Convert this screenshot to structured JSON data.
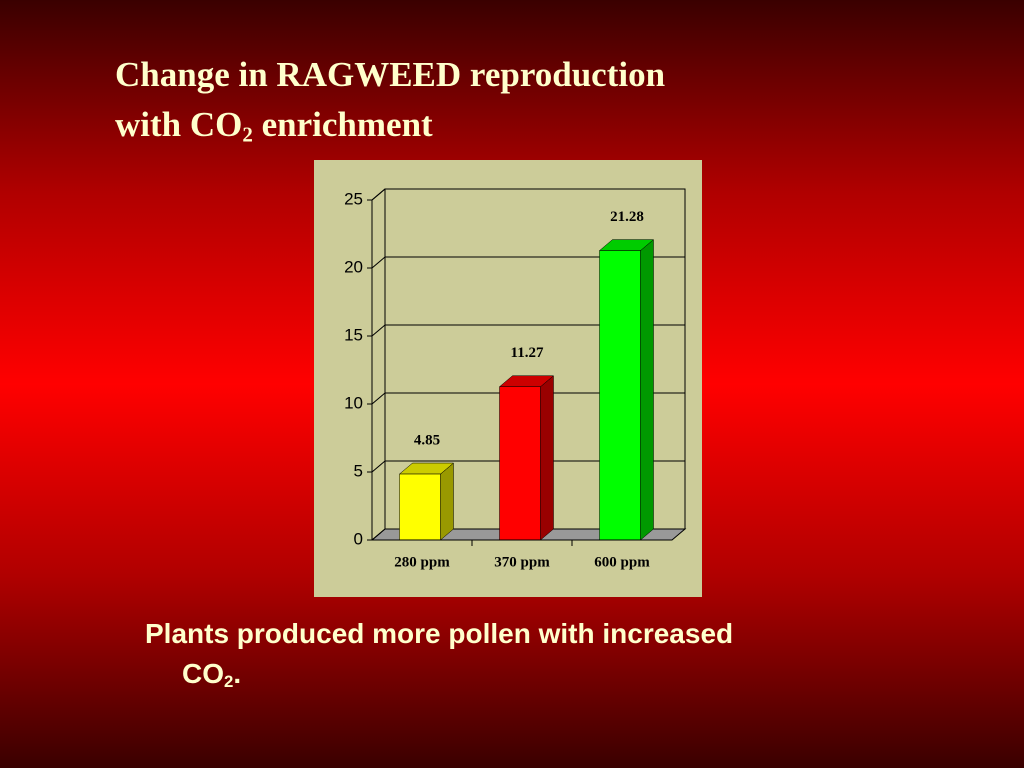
{
  "slide": {
    "title": {
      "line1": "Change in RAGWEED reproduction",
      "line2_start": "with CO",
      "line2_sub": "2",
      "line2_end": "enrichment"
    },
    "caption": {
      "main": "Plants produced more pollen with increased",
      "chem": "CO",
      "sub": "2",
      "end": "."
    }
  },
  "chart_data": {
    "type": "bar3d",
    "categories": [
      "280 ppm",
      "370 ppm",
      "600 ppm"
    ],
    "values": [
      4.85,
      11.27,
      21.28
    ],
    "colors": [
      "#ffff00",
      "#ff0000",
      "#00ff00"
    ],
    "ylim": [
      0,
      25
    ],
    "yticks": [
      0,
      5,
      10,
      15,
      20,
      25
    ],
    "grid": true
  }
}
